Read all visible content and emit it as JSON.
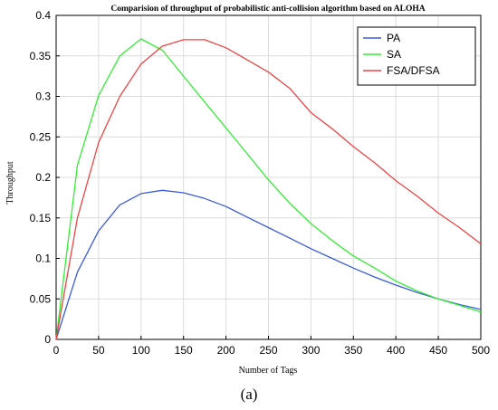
{
  "chart_data": {
    "type": "line",
    "title": "Comparision of throughput of probabilistic anti-collision algorithm based on ALOHA",
    "xlabel": "Number of Tags",
    "ylabel": "Throughput",
    "xlim": [
      0,
      500
    ],
    "ylim": [
      0,
      0.4
    ],
    "xticks": [
      "0",
      "50",
      "100",
      "150",
      "200",
      "250",
      "300",
      "350",
      "400",
      "450",
      "500"
    ],
    "yticks": [
      "0",
      "0.05",
      "0.1",
      "0.15",
      "0.2",
      "0.25",
      "0.3",
      "0.35",
      "0.4"
    ],
    "grid": true,
    "legend_position": "top-right",
    "x": [
      0,
      25,
      50,
      75,
      100,
      125,
      150,
      175,
      200,
      225,
      250,
      275,
      300,
      325,
      350,
      375,
      400,
      425,
      450,
      475,
      500
    ],
    "series": [
      {
        "name": "PA",
        "color": "#3b5bdb",
        "values": [
          0,
          0.083,
          0.134,
          0.166,
          0.18,
          0.184,
          0.181,
          0.174,
          0.164,
          0.151,
          0.138,
          0.125,
          0.112,
          0.1,
          0.088,
          0.077,
          0.067,
          0.058,
          0.05,
          0.043,
          0.037
        ]
      },
      {
        "name": "SA",
        "color": "#33ee33",
        "values": [
          0,
          0.215,
          0.301,
          0.35,
          0.371,
          0.357,
          0.325,
          0.293,
          0.261,
          0.229,
          0.197,
          0.168,
          0.143,
          0.122,
          0.103,
          0.088,
          0.072,
          0.06,
          0.05,
          0.042,
          0.034
        ]
      },
      {
        "name": "FSA/DFSA",
        "color": "#ee4444",
        "values": [
          0,
          0.15,
          0.243,
          0.3,
          0.34,
          0.362,
          0.37,
          0.37,
          0.36,
          0.345,
          0.33,
          0.31,
          0.28,
          0.26,
          0.238,
          0.218,
          0.196,
          0.177,
          0.156,
          0.138,
          0.118
        ]
      }
    ]
  },
  "caption": "(a)"
}
